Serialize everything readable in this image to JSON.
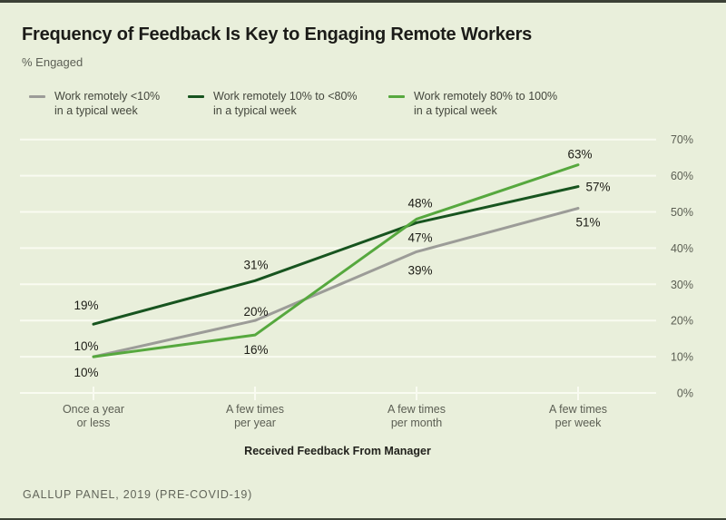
{
  "header": {
    "title": "Frequency of Feedback Is Key to Engaging Remote Workers",
    "subtitle": "% Engaged"
  },
  "legend": {
    "items": [
      {
        "line1": "Work remotely <10%",
        "line2": "in a typical week",
        "color": "#9c9c98"
      },
      {
        "line1": "Work remotely 10% to <80%",
        "line2": "in a typical week",
        "color": "#17541f"
      },
      {
        "line1": "Work remotely 80% to 100%",
        "line2": "in a typical week",
        "color": "#56a83e"
      }
    ]
  },
  "chart_data": {
    "type": "line",
    "title": "Frequency of Feedback Is Key to Engaging Remote Workers",
    "xlabel": "Received Feedback From Manager",
    "ylabel": "% Engaged",
    "categories": [
      [
        "Once a year",
        "or less"
      ],
      [
        "A few times",
        "per year"
      ],
      [
        "A few times",
        "per month"
      ],
      [
        "A few times",
        "per week"
      ]
    ],
    "series": [
      {
        "name": "Work remotely <10% in a typical week",
        "color": "#9c9c98",
        "values": [
          10,
          20,
          39,
          51
        ]
      },
      {
        "name": "Work remotely 10% to <80% in a typical week",
        "color": "#17541f",
        "values": [
          19,
          31,
          47,
          57
        ]
      },
      {
        "name": "Work remotely 80% to 100% in a typical week",
        "color": "#56a83e",
        "values": [
          10,
          16,
          48,
          63
        ]
      }
    ],
    "ylim": [
      0,
      70
    ],
    "yticks": [
      "0%",
      "10%",
      "20%",
      "30%",
      "40%",
      "50%",
      "60%",
      "70%"
    ],
    "grid": true,
    "legend_position": "top",
    "data_labels": true,
    "data_label_suffix": "%"
  },
  "footer": {
    "source": "GALLUP PANEL, 2019 (PRE-COVID-19)"
  },
  "colors": {
    "background": "#e9efdb",
    "gridline": "#f9fbf1",
    "title_text": "#1b1b18",
    "axis_text": "#5b5e53",
    "data_label_text": "#1c1c16",
    "edge_bar": "#3c4136"
  }
}
